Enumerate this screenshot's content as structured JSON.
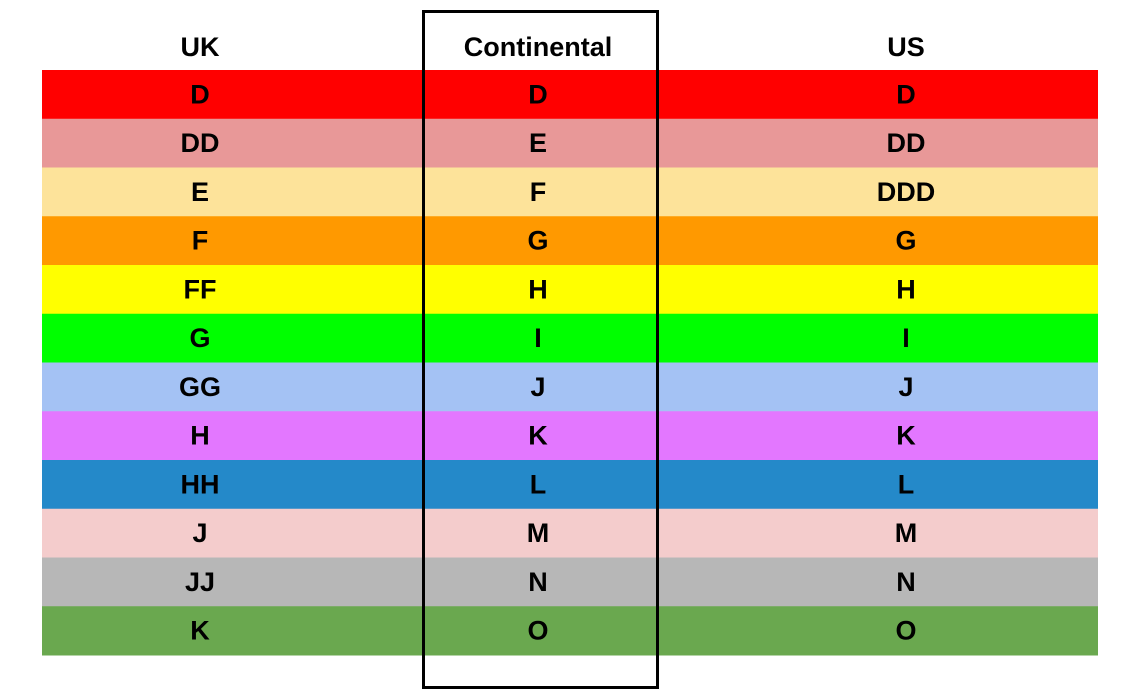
{
  "table": {
    "header": [
      "UK",
      "Continental",
      "US"
    ],
    "rows": [
      [
        "D",
        "D",
        "D"
      ],
      [
        "DD",
        "E",
        "DD"
      ],
      [
        "E",
        "F",
        "DDD"
      ],
      [
        "F",
        "G",
        "G"
      ],
      [
        "FF",
        "H",
        "H"
      ],
      [
        "G",
        "I",
        "I"
      ],
      [
        "GG",
        "J",
        "J"
      ],
      [
        "H",
        "K",
        "K"
      ],
      [
        "HH",
        "L",
        "L"
      ],
      [
        "J",
        "M",
        "M"
      ],
      [
        "JJ",
        "N",
        "N"
      ],
      [
        "K",
        "O",
        "O"
      ]
    ]
  }
}
